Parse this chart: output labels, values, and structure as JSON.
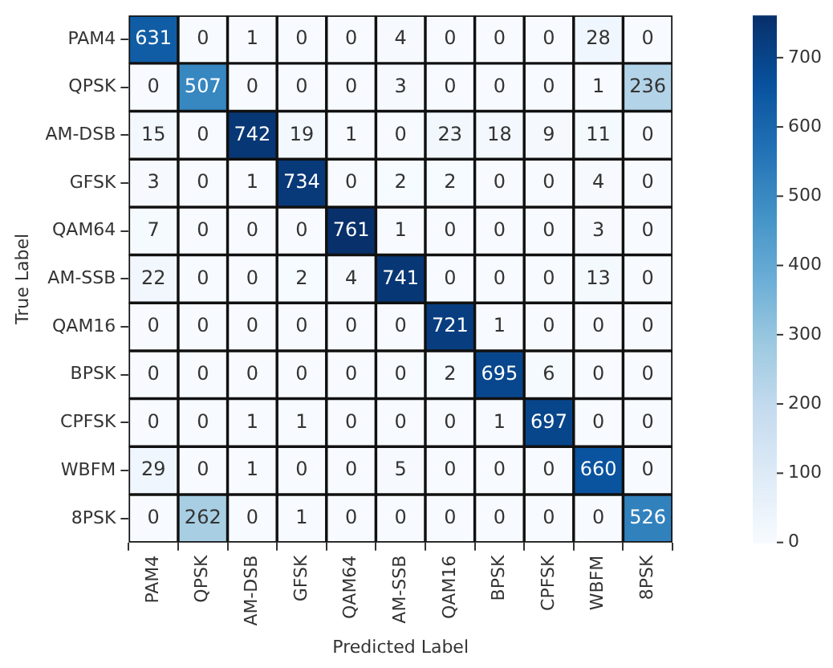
{
  "chart_data": {
    "type": "heatmap",
    "xlabel": "Predicted Label",
    "ylabel": "True Label",
    "categories": [
      "PAM4",
      "QPSK",
      "AM-DSB",
      "GFSK",
      "QAM64",
      "AM-SSB",
      "QAM16",
      "BPSK",
      "CPFSK",
      "WBFM",
      "8PSK"
    ],
    "y_categories": [
      "PAM4",
      "QPSK",
      "AM-DSB",
      "GFSK",
      "QAM64",
      "AM-SSB",
      "QAM16",
      "BPSK",
      "CPFSK",
      "WBFM",
      "8PSK"
    ],
    "cells": [
      [
        631,
        0,
        1,
        0,
        0,
        4,
        0,
        0,
        0,
        28,
        0
      ],
      [
        0,
        507,
        0,
        0,
        0,
        3,
        0,
        0,
        0,
        1,
        236
      ],
      [
        15,
        0,
        742,
        19,
        1,
        0,
        23,
        18,
        9,
        11,
        0
      ],
      [
        3,
        0,
        1,
        734,
        0,
        2,
        2,
        0,
        0,
        4,
        0
      ],
      [
        7,
        0,
        0,
        0,
        761,
        1,
        0,
        0,
        0,
        3,
        0
      ],
      [
        22,
        0,
        0,
        2,
        4,
        741,
        0,
        0,
        0,
        13,
        0
      ],
      [
        0,
        0,
        0,
        0,
        0,
        0,
        721,
        1,
        0,
        0,
        0
      ],
      [
        0,
        0,
        0,
        0,
        0,
        0,
        2,
        695,
        6,
        0,
        0
      ],
      [
        0,
        0,
        1,
        1,
        0,
        0,
        0,
        1,
        697,
        0,
        0
      ],
      [
        29,
        0,
        1,
        0,
        0,
        5,
        0,
        0,
        0,
        660,
        0
      ],
      [
        0,
        262,
        0,
        1,
        0,
        0,
        0,
        0,
        0,
        0,
        526
      ]
    ],
    "clim": [
      0,
      761
    ],
    "cticks": [
      0,
      100,
      200,
      300,
      400,
      500,
      600,
      700
    ],
    "data_labels": true
  }
}
